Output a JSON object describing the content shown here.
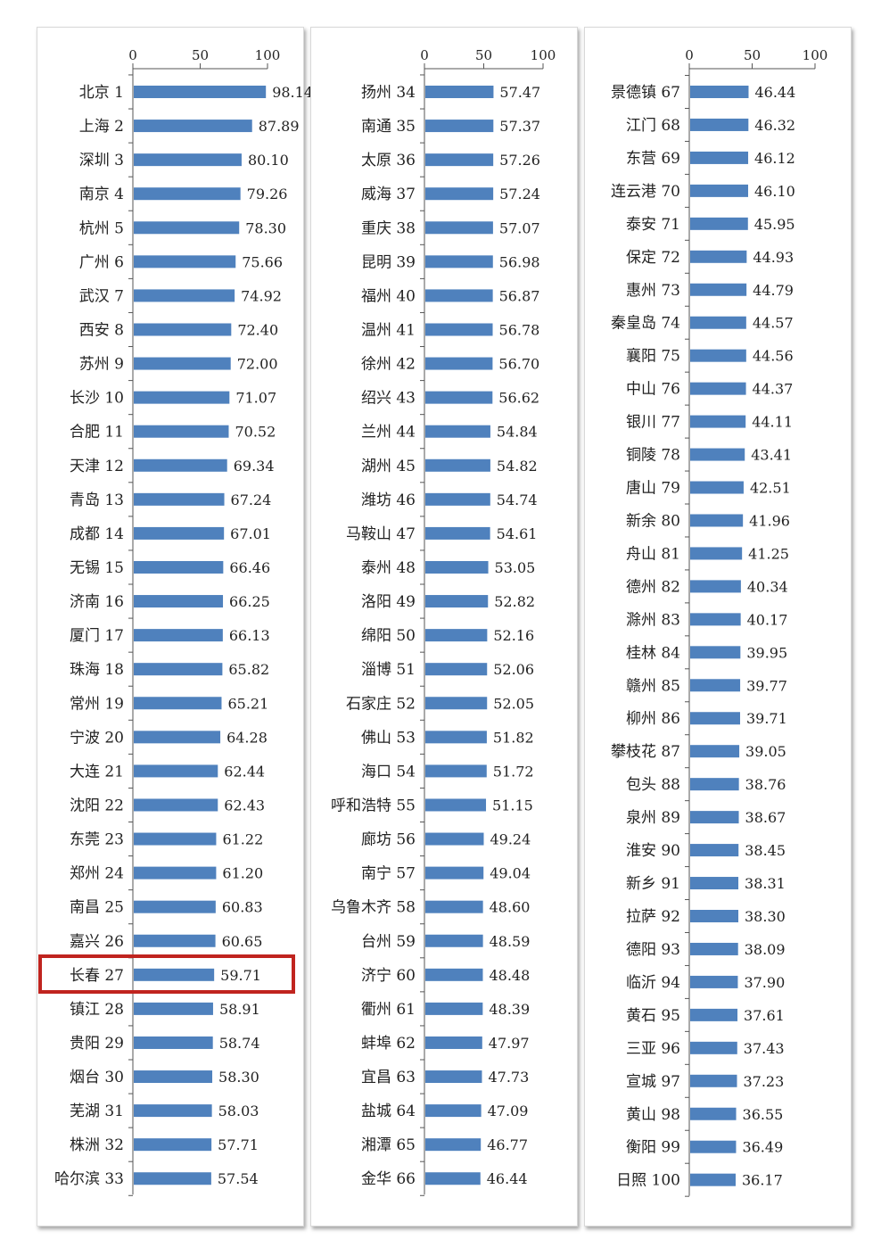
{
  "chart_data": [
    {
      "type": "bar",
      "orientation": "horizontal",
      "xlim": [
        0,
        100
      ],
      "xticks": [
        "0",
        "50",
        "100"
      ],
      "categories": [
        "北京 1",
        "上海 2",
        "深圳 3",
        "南京 4",
        "杭州 5",
        "广州 6",
        "武汉 7",
        "西安 8",
        "苏州 9",
        "长沙 10",
        "合肥 11",
        "天津 12",
        "青岛 13",
        "成都 14",
        "无锡 15",
        "济南 16",
        "厦门 17",
        "珠海 18",
        "常州 19",
        "宁波 20",
        "大连 21",
        "沈阳 22",
        "东莞 23",
        "郑州 24",
        "南昌 25",
        "嘉兴 26",
        "长春 27",
        "镇江 28",
        "贵阳 29",
        "烟台 30",
        "芜湖 31",
        "株洲 32",
        "哈尔滨 33"
      ],
      "values": [
        98.14,
        87.89,
        80.1,
        79.26,
        78.3,
        75.66,
        74.92,
        72.4,
        72.0,
        71.07,
        70.52,
        69.34,
        67.24,
        67.01,
        66.46,
        66.25,
        66.13,
        65.82,
        65.21,
        64.28,
        62.44,
        62.43,
        61.22,
        61.2,
        60.83,
        60.65,
        59.71,
        58.91,
        58.74,
        58.3,
        58.03,
        57.71,
        57.54
      ],
      "labels": [
        "98.14",
        "87.89",
        "80.10",
        "79.26",
        "78.30",
        "75.66",
        "74.92",
        "72.40",
        "72.00",
        "71.07",
        "70.52",
        "69.34",
        "67.24",
        "67.01",
        "66.46",
        "66.25",
        "66.13",
        "65.82",
        "65.21",
        "64.28",
        "62.44",
        "62.43",
        "61.22",
        "61.20",
        "60.83",
        "60.65",
        "59.71",
        "58.91",
        "58.74",
        "58.30",
        "58.03",
        "57.71",
        "57.54"
      ],
      "highlight_index": 26
    },
    {
      "type": "bar",
      "orientation": "horizontal",
      "xlim": [
        0,
        100
      ],
      "xticks": [
        "0",
        "50",
        "100"
      ],
      "categories": [
        "扬州 34",
        "南通 35",
        "太原 36",
        "威海 37",
        "重庆 38",
        "昆明 39",
        "福州 40",
        "温州 41",
        "徐州 42",
        "绍兴 43",
        "兰州 44",
        "湖州 45",
        "潍坊 46",
        "马鞍山 47",
        "泰州 48",
        "洛阳 49",
        "绵阳 50",
        "淄博 51",
        "石家庄 52",
        "佛山 53",
        "海口 54",
        "呼和浩特 55",
        "廊坊 56",
        "南宁 57",
        "乌鲁木齐 58",
        "台州 59",
        "济宁 60",
        "衢州 61",
        "蚌埠 62",
        "宜昌 63",
        "盐城 64",
        "湘潭 65",
        "金华 66"
      ],
      "values": [
        57.47,
        57.37,
        57.26,
        57.24,
        57.07,
        56.98,
        56.87,
        56.78,
        56.7,
        56.62,
        54.84,
        54.82,
        54.74,
        54.61,
        53.05,
        52.82,
        52.16,
        52.06,
        52.05,
        51.82,
        51.72,
        51.15,
        49.24,
        49.04,
        48.6,
        48.59,
        48.48,
        48.39,
        47.97,
        47.73,
        47.09,
        46.77,
        46.44
      ],
      "labels": [
        "57.47",
        "57.37",
        "57.26",
        "57.24",
        "57.07",
        "56.98",
        "56.87",
        "56.78",
        "56.70",
        "56.62",
        "54.84",
        "54.82",
        "54.74",
        "54.61",
        "53.05",
        "52.82",
        "52.16",
        "52.06",
        "52.05",
        "51.82",
        "51.72",
        "51.15",
        "49.24",
        "49.04",
        "48.60",
        "48.59",
        "48.48",
        "48.39",
        "47.97",
        "47.73",
        "47.09",
        "46.77",
        "46.44"
      ]
    },
    {
      "type": "bar",
      "orientation": "horizontal",
      "xlim": [
        0,
        100
      ],
      "xticks": [
        "0",
        "50",
        "100"
      ],
      "categories": [
        "景德镇 67",
        "江门 68",
        "东营 69",
        "连云港 70",
        "泰安 71",
        "保定 72",
        "惠州 73",
        "秦皇岛 74",
        "襄阳 75",
        "中山 76",
        "银川 77",
        "铜陵 78",
        "唐山 79",
        "新余 80",
        "舟山 81",
        "德州 82",
        "滁州 83",
        "桂林 84",
        "赣州 85",
        "柳州 86",
        "攀枝花 87",
        "包头 88",
        "泉州 89",
        "淮安 90",
        "新乡 91",
        "拉萨 92",
        "德阳 93",
        "临沂 94",
        "黄石 95",
        "三亚 96",
        "宣城 97",
        "黄山 98",
        "衡阳 99",
        "日照 100"
      ],
      "values": [
        46.44,
        46.32,
        46.12,
        46.1,
        45.95,
        44.93,
        44.79,
        44.57,
        44.56,
        44.37,
        44.11,
        43.41,
        42.51,
        41.96,
        41.25,
        40.34,
        40.17,
        39.95,
        39.77,
        39.71,
        39.05,
        38.76,
        38.67,
        38.45,
        38.31,
        38.3,
        38.09,
        37.9,
        37.61,
        37.43,
        37.23,
        36.55,
        36.49,
        36.17
      ],
      "labels": [
        "46.44",
        "46.32",
        "46.12",
        "46.10",
        "45.95",
        "44.93",
        "44.79",
        "44.57",
        "44.56",
        "44.37",
        "44.11",
        "43.41",
        "42.51",
        "41.96",
        "41.25",
        "40.34",
        "40.17",
        "39.95",
        "39.77",
        "39.71",
        "39.05",
        "38.76",
        "38.67",
        "38.45",
        "38.31",
        "38.30",
        "38.09",
        "37.90",
        "37.61",
        "37.43",
        "37.23",
        "36.55",
        "36.49",
        "36.17"
      ]
    }
  ],
  "colors": {
    "bar": "#4f81bd",
    "axis": "#555555",
    "text": "#222222",
    "highlight": "#c0241f"
  }
}
